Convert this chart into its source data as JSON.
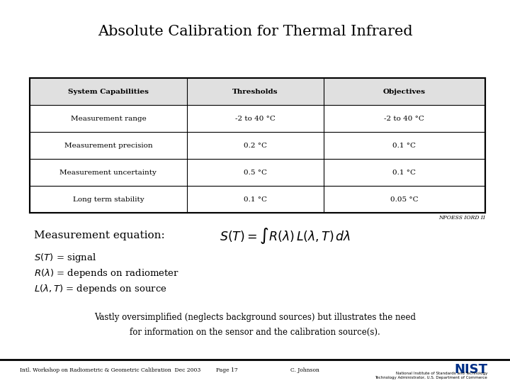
{
  "title": "Absolute Calibration for Thermal Infrared",
  "table_headers": [
    "System Capabilities",
    "Thresholds",
    "Objectives"
  ],
  "table_rows": [
    [
      "Measurement range",
      "-2 to 40 °C",
      "-2 to 40 °C"
    ],
    [
      "Measurement precision",
      "0.2 °C",
      "0.1 °C"
    ],
    [
      "Measurement uncertainty",
      "0.5 °C",
      "0.1 °C"
    ],
    [
      "Long term stability",
      "0.1 °C",
      "0.05 °C"
    ]
  ],
  "npoess_label": "NPOESS IORD II",
  "meas_eq_label": "Measurement equation:",
  "defs": [
    "$S(T)$ = signal",
    "$R(\\lambda)$ = depends on radiometer",
    "$L(\\lambda, T)$ = depends on source"
  ],
  "vastly_line1": "Vastly oversimplified (neglects background sources) but illustrates the need",
  "vastly_line2": "for information on the sensor and the calibration source(s).",
  "footer_left": "Intl. Workshop on Radiometric & Geometric Calibration  Dec 2003",
  "footer_center": "Page 17",
  "footer_author": "C. Johnson",
  "bg_color": "#ffffff",
  "border_color": "#000000",
  "text_color": "#000000",
  "header_bg": "#e0e0e0"
}
